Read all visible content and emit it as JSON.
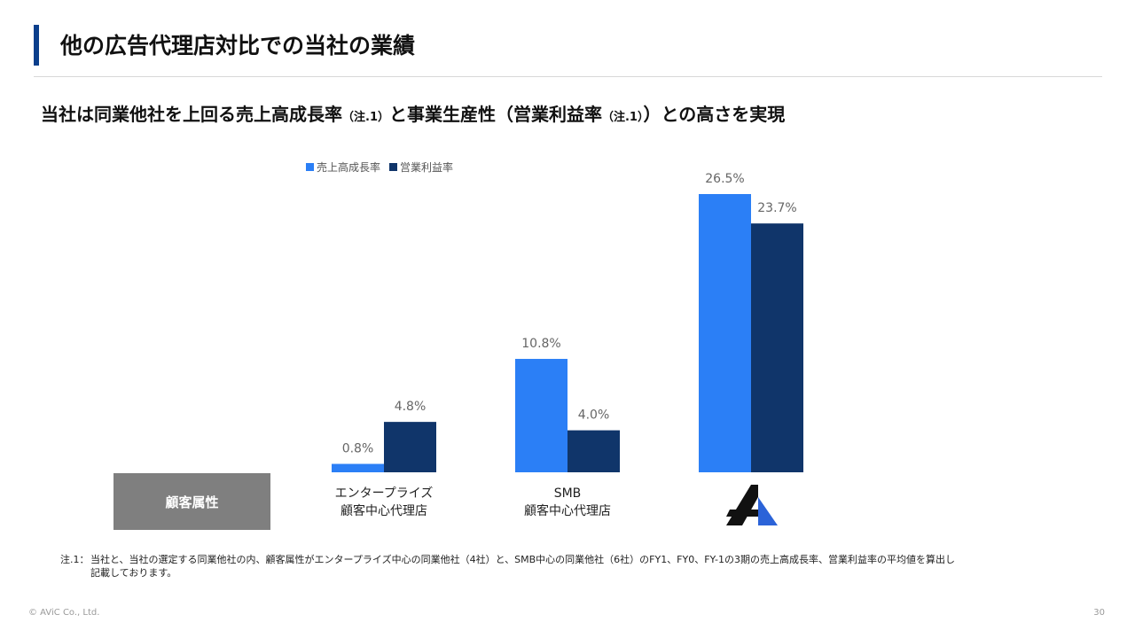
{
  "header": {
    "title": "他の広告代理店対比での当社の業績"
  },
  "subtitle": {
    "part1": "当社は同業他社を上回る売上高成長率",
    "ref1": "（注.1）",
    "part2": "と事業生産性（営業利益率",
    "ref2": "（注.1）",
    "part3": "）との高さを実現"
  },
  "category_badge": "顧客属性",
  "chart_data": {
    "type": "bar",
    "categories": [
      "エンタープライズ\n顧客中心代理店",
      "SMB\n顧客中心代理店",
      "AViC"
    ],
    "category_lines": [
      [
        "エンタープライズ",
        "顧客中心代理店"
      ],
      [
        "SMB",
        "顧客中心代理店"
      ]
    ],
    "series": [
      {
        "name": "売上高成長率",
        "values": [
          0.8,
          10.8,
          26.5
        ],
        "labels": [
          "0.8%",
          "10.8%",
          "26.5%"
        ],
        "color": "#2b7ff6"
      },
      {
        "name": "営業利益率",
        "values": [
          4.8,
          4.0,
          23.7
        ],
        "labels": [
          "4.8%",
          "4.0%",
          "23.7%"
        ],
        "color": "#10356a"
      }
    ],
    "unit": "%",
    "ylim": [
      0,
      26.5
    ],
    "grid": false,
    "legend": "top-left"
  },
  "logo": {
    "icon": "avic-logo-icon",
    "colors": [
      "#111111",
      "#2b63d8"
    ]
  },
  "footnote": {
    "mark": "注.1：",
    "line1": "当社と、当社の選定する同業他社の内、顧客属性がエンタープライズ中心の同業他社（4社）と、SMB中心の同業他社（6社）のFY1、FY0、FY-1の3期の売上高成長率、営業利益率の平均値を算出し",
    "line2": "記載しております。"
  },
  "footer": {
    "copyright": "© AViC Co., Ltd.",
    "page_number": "30"
  }
}
